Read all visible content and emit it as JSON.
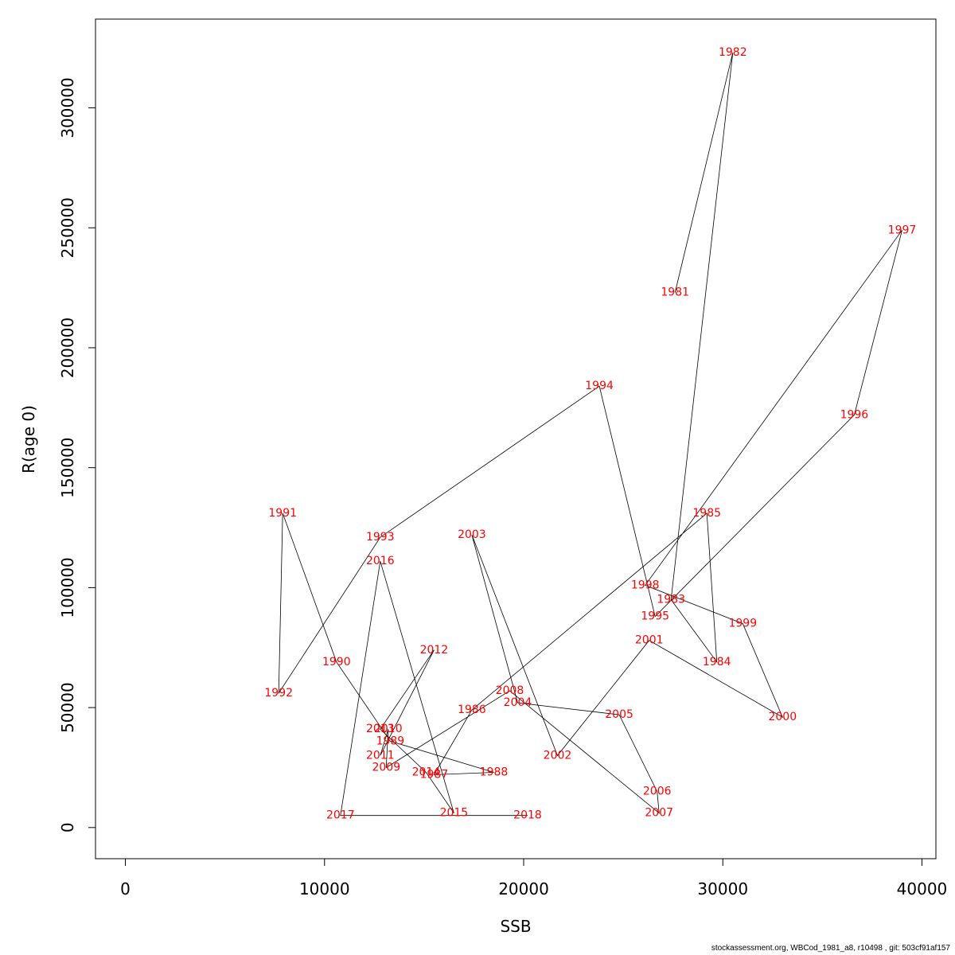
{
  "chart_data": {
    "type": "line",
    "xlabel": "SSB",
    "ylabel": "R(age 0)",
    "xlim": [
      -1500,
      40700
    ],
    "ylim": [
      -13000,
      337000
    ],
    "x_ticks": [
      0,
      10000,
      20000,
      30000,
      40000
    ],
    "y_ticks": [
      0,
      50000,
      100000,
      150000,
      200000,
      250000,
      300000
    ],
    "x_tick_labels": [
      "0",
      "10000",
      "20000",
      "30000",
      "40000"
    ],
    "y_tick_labels": [
      "0",
      "50000",
      "100000",
      "150000",
      "200000",
      "250000",
      "300000"
    ],
    "grid": false,
    "line_color": "#000000",
    "label_color": "#ff0000",
    "points": [
      {
        "year": "1981",
        "ssb": 27600,
        "r": 223000
      },
      {
        "year": "1982",
        "ssb": 30500,
        "r": 323000
      },
      {
        "year": "1983",
        "ssb": 27400,
        "r": 95000
      },
      {
        "year": "1984",
        "ssb": 29700,
        "r": 69000
      },
      {
        "year": "1985",
        "ssb": 29200,
        "r": 131000
      },
      {
        "year": "1986",
        "ssb": 17400,
        "r": 49000
      },
      {
        "year": "1987",
        "ssb": 15500,
        "r": 22000
      },
      {
        "year": "1988",
        "ssb": 18500,
        "r": 23000
      },
      {
        "year": "1989",
        "ssb": 13300,
        "r": 36000
      },
      {
        "year": "1990",
        "ssb": 10600,
        "r": 69000
      },
      {
        "year": "1991",
        "ssb": 7900,
        "r": 131000
      },
      {
        "year": "1992",
        "ssb": 7700,
        "r": 56000
      },
      {
        "year": "1993",
        "ssb": 12800,
        "r": 121000
      },
      {
        "year": "1994",
        "ssb": 23800,
        "r": 184000
      },
      {
        "year": "1995",
        "ssb": 26600,
        "r": 88000
      },
      {
        "year": "1996",
        "ssb": 36600,
        "r": 172000
      },
      {
        "year": "1997",
        "ssb": 39000,
        "r": 249000
      },
      {
        "year": "1998",
        "ssb": 26100,
        "r": 101000
      },
      {
        "year": "1999",
        "ssb": 31000,
        "r": 85000
      },
      {
        "year": "2000",
        "ssb": 33000,
        "r": 46000
      },
      {
        "year": "2001",
        "ssb": 26300,
        "r": 78000
      },
      {
        "year": "2002",
        "ssb": 21700,
        "r": 30000
      },
      {
        "year": "2003",
        "ssb": 17400,
        "r": 122000
      },
      {
        "year": "2004",
        "ssb": 19700,
        "r": 52000
      },
      {
        "year": "2005",
        "ssb": 24800,
        "r": 47000
      },
      {
        "year": "2006",
        "ssb": 26700,
        "r": 15000
      },
      {
        "year": "2007",
        "ssb": 26800,
        "r": 6000
      },
      {
        "year": "2008",
        "ssb": 19300,
        "r": 57000
      },
      {
        "year": "2009",
        "ssb": 13100,
        "r": 25000
      },
      {
        "year": "2010",
        "ssb": 13200,
        "r": 41000
      },
      {
        "year": "2011",
        "ssb": 12800,
        "r": 30000
      },
      {
        "year": "2012",
        "ssb": 15500,
        "r": 74000
      },
      {
        "year": "2013",
        "ssb": 12800,
        "r": 41000
      },
      {
        "year": "2014",
        "ssb": 15100,
        "r": 23000
      },
      {
        "year": "2015",
        "ssb": 16500,
        "r": 6000
      },
      {
        "year": "2016",
        "ssb": 12800,
        "r": 111000
      },
      {
        "year": "2017",
        "ssb": 10800,
        "r": 5000
      },
      {
        "year": "2018",
        "ssb": 20200,
        "r": 5000
      }
    ]
  },
  "footer_text": "stockassessment.org, WBCod_1981_a8, r10498 , git: 503cf91af157"
}
